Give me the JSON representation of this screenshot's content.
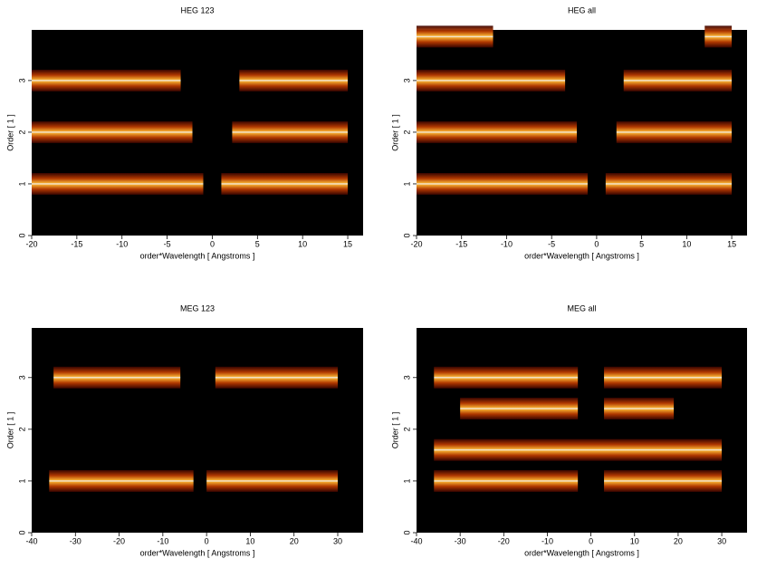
{
  "chart_data": [
    {
      "type": "heatmap",
      "title": "HEG 123",
      "x_label": "order*Wavelength [ Angstroms ]",
      "y_label": "Order [ 1 ]",
      "xlim": [
        -20,
        16.7
      ],
      "ylim": [
        0,
        3.98
      ],
      "xticks": [
        -20,
        -15,
        -10,
        -5,
        0,
        5,
        10,
        15
      ],
      "yticks": [
        0,
        1,
        2,
        3
      ],
      "bands": [
        {
          "order": 3,
          "x": [
            -20,
            -3.5
          ]
        },
        {
          "order": 3,
          "x": [
            3,
            15
          ]
        },
        {
          "order": 2,
          "x": [
            -20,
            -2.2
          ]
        },
        {
          "order": 2,
          "x": [
            2.2,
            15
          ]
        },
        {
          "order": 1,
          "x": [
            -20,
            -1
          ]
        },
        {
          "order": 1,
          "x": [
            1,
            15
          ]
        }
      ]
    },
    {
      "type": "heatmap",
      "title": "HEG all",
      "x_label": "order*Wavelength [ Angstroms ]",
      "y_label": "Order [ 1 ]",
      "xlim": [
        -20,
        16.7
      ],
      "ylim": [
        0,
        3.98
      ],
      "xticks": [
        -20,
        -15,
        -10,
        -5,
        0,
        5,
        10,
        15
      ],
      "yticks": [
        0,
        1,
        2,
        3
      ],
      "bands": [
        {
          "order": 3.85,
          "x": [
            -20,
            -11.5
          ]
        },
        {
          "order": 3.85,
          "x": [
            12,
            15
          ]
        },
        {
          "order": 3,
          "x": [
            -20,
            -3.5
          ]
        },
        {
          "order": 3,
          "x": [
            3,
            15
          ]
        },
        {
          "order": 2,
          "x": [
            -20,
            -2.2
          ]
        },
        {
          "order": 2,
          "x": [
            2.2,
            15
          ]
        },
        {
          "order": 1,
          "x": [
            -20,
            -1
          ]
        },
        {
          "order": 1,
          "x": [
            1,
            15
          ]
        }
      ]
    },
    {
      "type": "heatmap",
      "title": "MEG 123",
      "x_label": "order*Wavelength [ Angstroms ]",
      "y_label": "Order [ 1 ]",
      "xlim": [
        -40,
        35.8
      ],
      "ylim": [
        0,
        3.96
      ],
      "xticks": [
        -40,
        -30,
        -20,
        -10,
        0,
        10,
        20,
        30
      ],
      "yticks": [
        0,
        1,
        2,
        3
      ],
      "bands": [
        {
          "order": 3,
          "x": [
            -35,
            -6
          ]
        },
        {
          "order": 3,
          "x": [
            2,
            30
          ]
        },
        {
          "order": 1,
          "x": [
            -36,
            -3
          ]
        },
        {
          "order": 1,
          "x": [
            0,
            30
          ]
        }
      ]
    },
    {
      "type": "heatmap",
      "title": "MEG all",
      "x_label": "order*Wavelength [ Angstroms ]",
      "y_label": "Order [ 1 ]",
      "xlim": [
        -40,
        35.8
      ],
      "ylim": [
        0,
        3.96
      ],
      "xticks": [
        -40,
        -30,
        -20,
        -10,
        0,
        10,
        20,
        30
      ],
      "yticks": [
        0,
        1,
        2,
        3
      ],
      "bands": [
        {
          "order": 3,
          "x": [
            -36,
            -3
          ]
        },
        {
          "order": 3,
          "x": [
            3,
            30
          ]
        },
        {
          "order": 2.4,
          "x": [
            -30,
            -3
          ]
        },
        {
          "order": 2.4,
          "x": [
            3,
            19
          ]
        },
        {
          "order": 1.6,
          "x": [
            -36,
            30
          ]
        },
        {
          "order": 1,
          "x": [
            -36,
            -3
          ]
        },
        {
          "order": 1,
          "x": [
            3,
            30
          ]
        }
      ]
    }
  ]
}
